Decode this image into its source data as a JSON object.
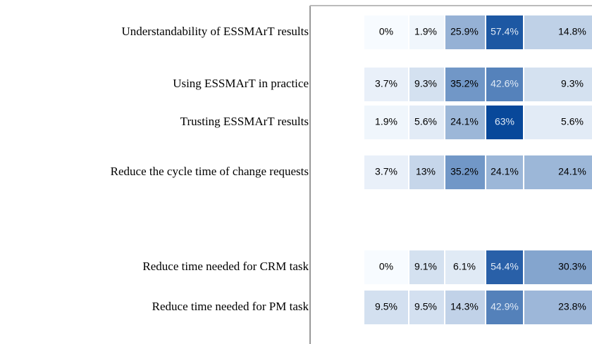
{
  "chart_data": {
    "type": "heatmap",
    "rows": [
      "Understandability of ESSMArT results",
      "Using ESSMArT in practice",
      "Trusting ESSMArT results",
      "Reduce the cycle time of change  requests",
      "Reduce time needed for CRM  task",
      "Reduce time needed for PM  task"
    ],
    "values": [
      [
        0,
        1.9,
        25.9,
        57.4,
        14.8
      ],
      [
        3.7,
        9.3,
        35.2,
        42.6,
        9.3
      ],
      [
        1.9,
        5.6,
        24.1,
        63,
        5.6
      ],
      [
        3.7,
        13,
        35.2,
        24.1,
        24.1
      ],
      [
        0,
        9.1,
        6.1,
        54.4,
        30.3
      ],
      [
        9.5,
        9.5,
        14.3,
        42.9,
        23.8
      ]
    ],
    "value_labels": [
      [
        "0%",
        "1.9%",
        "25.9%",
        "57.4%",
        "14.8%"
      ],
      [
        "3.7%",
        "9.3%",
        "35.2%",
        "42.6%",
        "9.3%"
      ],
      [
        "1.9%",
        "5.6%",
        "24.1%",
        "63%",
        "5.6%"
      ],
      [
        "3.7%",
        "13%",
        "35.2%",
        "24.1%",
        "24.1%"
      ],
      [
        "0%",
        "9.1%",
        "6.1%",
        "54.4%",
        "30.3%"
      ],
      [
        "9.5%",
        "9.5%",
        "14.3%",
        "42.9%",
        "23.8%"
      ]
    ],
    "color_low": "#f7fbff",
    "color_high": "#08489a"
  }
}
